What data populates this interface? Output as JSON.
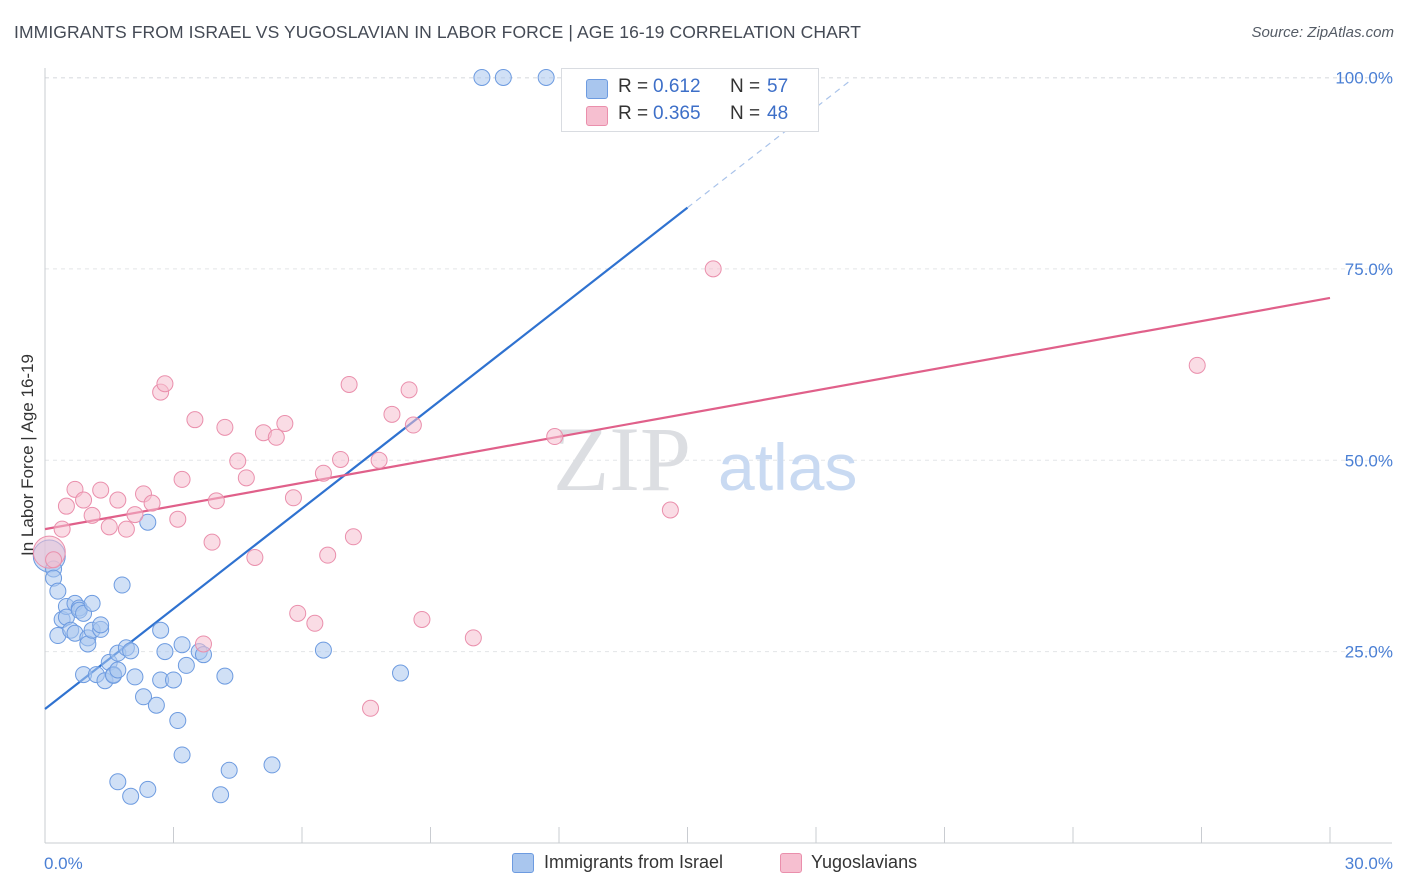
{
  "title": "IMMIGRANTS FROM ISRAEL VS YUGOSLAVIAN IN LABOR FORCE | AGE 16-19 CORRELATION CHART",
  "source": "Source: ZipAtlas.com",
  "watermark": {
    "zip": "ZIP",
    "atlas": "atlas"
  },
  "colors": {
    "blue_fill": "#a9c6ee",
    "blue_stroke": "#6d9be0",
    "blue_line": "#2f72d0",
    "pink_fill": "#f6bfd0",
    "pink_stroke": "#ea8fac",
    "pink_line": "#e0608a",
    "axis_text": "#4a7fd4",
    "grid": "#e3e5e8"
  },
  "legend": {
    "rows": [
      {
        "r_label": "R =",
        "r_value": "0.612",
        "n_label": "N =",
        "n_value": "57"
      },
      {
        "r_label": "R =",
        "r_value": "0.365",
        "n_label": "N =",
        "n_value": "48"
      }
    ]
  },
  "bottom_legend": [
    "Immigrants from Israel",
    "Yugoslavians"
  ],
  "chart_data": {
    "type": "scatter",
    "title": "IMMIGRANTS FROM ISRAEL VS YUGOSLAVIAN IN LABOR FORCE | AGE 16-19 CORRELATION CHART",
    "xlabel": "",
    "ylabel": "In Labor Force | Age 16-19",
    "xlim": [
      0,
      30
    ],
    "ylim": [
      0,
      105
    ],
    "x_tick_labels": [
      "0.0%",
      "30.0%"
    ],
    "y_ticks": [
      25,
      50,
      75,
      100
    ],
    "y_tick_labels": [
      "25.0%",
      "50.0%",
      "75.0%",
      "100.0%"
    ],
    "grid": true,
    "series": [
      {
        "name": "Immigrants from Israel",
        "color": "blue",
        "trend": {
          "x0": 0,
          "y0": 17.5,
          "x1": 15,
          "y1": 83,
          "dashed_to_x": 18.8
        },
        "points": [
          [
            0.1,
            37.5
          ],
          [
            0.2,
            35.8
          ],
          [
            0.2,
            34.6
          ],
          [
            0.3,
            32.9
          ],
          [
            0.3,
            27.1
          ],
          [
            0.4,
            29.2
          ],
          [
            0.5,
            30.9
          ],
          [
            0.5,
            29.5
          ],
          [
            0.6,
            27.8
          ],
          [
            0.7,
            31.3
          ],
          [
            0.7,
            27.4
          ],
          [
            0.8,
            30.7
          ],
          [
            0.8,
            30.4
          ],
          [
            0.9,
            30.0
          ],
          [
            0.9,
            22.0
          ],
          [
            1.0,
            26.8
          ],
          [
            1.0,
            26.0
          ],
          [
            1.1,
            31.3
          ],
          [
            1.1,
            27.8
          ],
          [
            1.2,
            22.0
          ],
          [
            1.3,
            27.9
          ],
          [
            1.3,
            28.5
          ],
          [
            1.4,
            21.2
          ],
          [
            1.5,
            23.6
          ],
          [
            1.6,
            22.0
          ],
          [
            1.6,
            21.9
          ],
          [
            1.7,
            22.6
          ],
          [
            1.7,
            24.8
          ],
          [
            1.8,
            33.7
          ],
          [
            1.9,
            25.5
          ],
          [
            2.0,
            25.1
          ],
          [
            2.1,
            21.7
          ],
          [
            2.3,
            19.1
          ],
          [
            2.4,
            41.9
          ],
          [
            2.6,
            18.0
          ],
          [
            2.7,
            21.3
          ],
          [
            2.7,
            27.8
          ],
          [
            2.8,
            25.0
          ],
          [
            3.0,
            21.3
          ],
          [
            3.1,
            16.0
          ],
          [
            3.2,
            25.9
          ],
          [
            3.3,
            23.2
          ],
          [
            3.6,
            25.0
          ],
          [
            3.7,
            24.6
          ],
          [
            4.2,
            21.8
          ],
          [
            4.3,
            9.5
          ],
          [
            5.3,
            10.2
          ],
          [
            6.5,
            25.2
          ],
          [
            8.3,
            22.2
          ],
          [
            1.7,
            8.0
          ],
          [
            2.0,
            6.1
          ],
          [
            2.4,
            7.0
          ],
          [
            4.1,
            6.3
          ],
          [
            3.2,
            11.5
          ],
          [
            10.2,
            100
          ],
          [
            10.7,
            100
          ],
          [
            11.7,
            100
          ]
        ]
      },
      {
        "name": "Yugoslavians",
        "color": "pink",
        "trend": {
          "x0": 0,
          "y0": 41.0,
          "x1": 30,
          "y1": 71.2
        },
        "points": [
          [
            0.1,
            38.0
          ],
          [
            0.2,
            37.0
          ],
          [
            0.4,
            41.0
          ],
          [
            0.5,
            44.0
          ],
          [
            0.7,
            46.2
          ],
          [
            0.9,
            44.8
          ],
          [
            1.1,
            42.8
          ],
          [
            1.3,
            46.1
          ],
          [
            1.5,
            41.3
          ],
          [
            1.7,
            44.8
          ],
          [
            1.9,
            41.0
          ],
          [
            2.1,
            42.9
          ],
          [
            2.3,
            45.6
          ],
          [
            2.5,
            44.4
          ],
          [
            2.7,
            58.9
          ],
          [
            2.8,
            60.0
          ],
          [
            3.1,
            42.3
          ],
          [
            3.2,
            47.5
          ],
          [
            3.5,
            55.3
          ],
          [
            3.9,
            39.3
          ],
          [
            4.0,
            44.7
          ],
          [
            4.2,
            54.3
          ],
          [
            4.5,
            49.9
          ],
          [
            4.7,
            47.7
          ],
          [
            4.9,
            37.3
          ],
          [
            5.1,
            53.6
          ],
          [
            5.4,
            53.0
          ],
          [
            5.6,
            54.8
          ],
          [
            5.8,
            45.1
          ],
          [
            5.9,
            30.0
          ],
          [
            6.3,
            28.7
          ],
          [
            6.5,
            48.3
          ],
          [
            6.6,
            37.6
          ],
          [
            6.9,
            50.1
          ],
          [
            7.1,
            59.9
          ],
          [
            7.2,
            40.0
          ],
          [
            7.6,
            17.6
          ],
          [
            7.8,
            50.0
          ],
          [
            8.1,
            56.0
          ],
          [
            8.5,
            59.2
          ],
          [
            8.6,
            54.6
          ],
          [
            8.8,
            29.2
          ],
          [
            10.0,
            26.8
          ],
          [
            11.9,
            53.1
          ],
          [
            14.6,
            43.5
          ],
          [
            15.6,
            75.0
          ],
          [
            26.9,
            62.4
          ],
          [
            3.7,
            26.0
          ]
        ]
      }
    ]
  }
}
